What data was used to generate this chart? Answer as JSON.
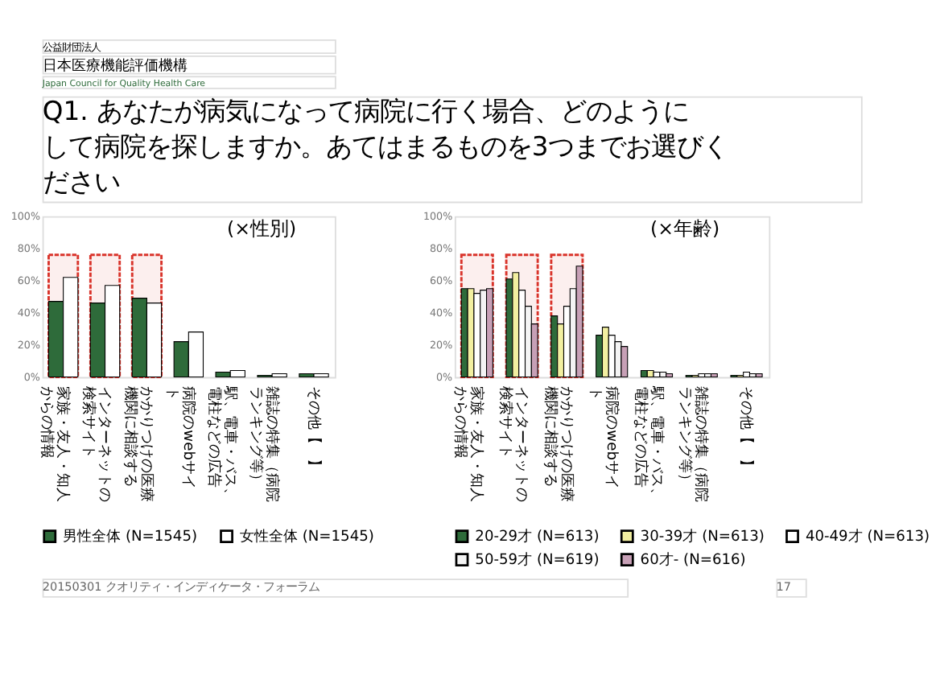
{
  "chart_data": [
    {
      "type": "bar",
      "title": "(×性別)",
      "annotations": [
        "公益財団法人",
        "日本医療機能評価機構",
        "Japan Council for Quality Health Care",
        "Q1. あなたが病気になって病院に行く場合、どのようにして病院を探しますか。あてはまるものを3つまでお選びください"
      ],
      "categories": [
        "家族・友人・知人からの情報",
        "インターネットの検索サイト",
        "かかりつけの医療機関に相談する",
        "病院のwebサイト",
        "駅、電車・バス、電柱などの広告",
        "雑誌の特集（病院ランキング等）",
        "その他【　】"
      ],
      "series": [
        {
          "name": "男性全体 (N=1545)",
          "color": "#2e6b3a",
          "values": [
            47,
            46,
            49,
            22,
            3,
            1,
            2
          ]
        },
        {
          "name": "女性全体 (N=1545)",
          "color": "#ffffff",
          "values": [
            62,
            57,
            46,
            28,
            4,
            2,
            2
          ]
        }
      ],
      "ylim": [
        0,
        100
      ],
      "yticks": [
        {
          "value": 0,
          "label": "0%"
        },
        {
          "value": 20,
          "label": "20%"
        },
        {
          "value": 40,
          "label": "40%"
        },
        {
          "value": 60,
          "label": "60%"
        },
        {
          "value": 80,
          "label": "80%"
        },
        {
          "value": 100,
          "label": "100%"
        }
      ],
      "bands": [
        {
          "axis": "x",
          "from": "家族・友人・知人からの情報",
          "to": "家族・友人・知人からの情報",
          "color": "#d9342b"
        },
        {
          "axis": "x",
          "from": "インターネットの検索サイト",
          "to": "インターネットの検索サイト",
          "color": "#d9342b"
        },
        {
          "axis": "x",
          "from": "かかりつけの医療機関に相談する",
          "to": "かかりつけの医療機関に相談する",
          "color": "#d9342b"
        }
      ],
      "legend": "bottom"
    },
    {
      "type": "bar",
      "title": "(×年齢)",
      "annotations": [
        "20150301 クオリティ・インディケータ・フォーラム",
        "17"
      ],
      "categories": [
        "家族・友人・知人からの情報",
        "インターネットの検索サイト",
        "かかりつけの医療機関に相談する",
        "病院のwebサイト",
        "駅、電車・バス、電柱などの広告",
        "雑誌の特集（病院ランキング等）",
        "その他【　】"
      ],
      "series": [
        {
          "name": "20-29才 (N=613)",
          "color": "#2e6b3a",
          "values": [
            55,
            61,
            38,
            26,
            4,
            1,
            1
          ]
        },
        {
          "name": "30-39才 (N=613)",
          "color": "#f2efa0",
          "values": [
            55,
            65,
            33,
            31,
            4,
            1,
            1
          ]
        },
        {
          "name": "40-49才 (N=613)",
          "color": "#ffffff",
          "values": [
            52,
            54,
            44,
            26,
            3,
            2,
            3
          ]
        },
        {
          "name": "50-59才 (N=619)",
          "color": "#f4f4f4",
          "values": [
            54,
            44,
            55,
            22,
            3,
            2,
            2
          ]
        },
        {
          "name": "60才- (N=616)",
          "color": "#c7a0b6",
          "values": [
            55,
            33,
            69,
            19,
            2,
            2,
            2
          ]
        }
      ],
      "ylim": [
        0,
        100
      ],
      "yticks": [
        {
          "value": 0,
          "label": "0%"
        },
        {
          "value": 20,
          "label": "20%"
        },
        {
          "value": 40,
          "label": "40%"
        },
        {
          "value": 60,
          "label": "60%"
        },
        {
          "value": 80,
          "label": "80%"
        },
        {
          "value": 100,
          "label": "100%"
        }
      ],
      "bands": [
        {
          "axis": "x",
          "from": "家族・友人・知人からの情報",
          "to": "家族・友人・知人からの情報",
          "color": "#d9342b"
        },
        {
          "axis": "x",
          "from": "インターネットの検索サイト",
          "to": "インターネットの検索サイト",
          "color": "#d9342b"
        },
        {
          "axis": "x",
          "from": "かかりつけの医療機関に相談する",
          "to": "かかりつけの医療機関に相談する",
          "color": "#d9342b"
        }
      ],
      "legend": "bottom"
    }
  ]
}
